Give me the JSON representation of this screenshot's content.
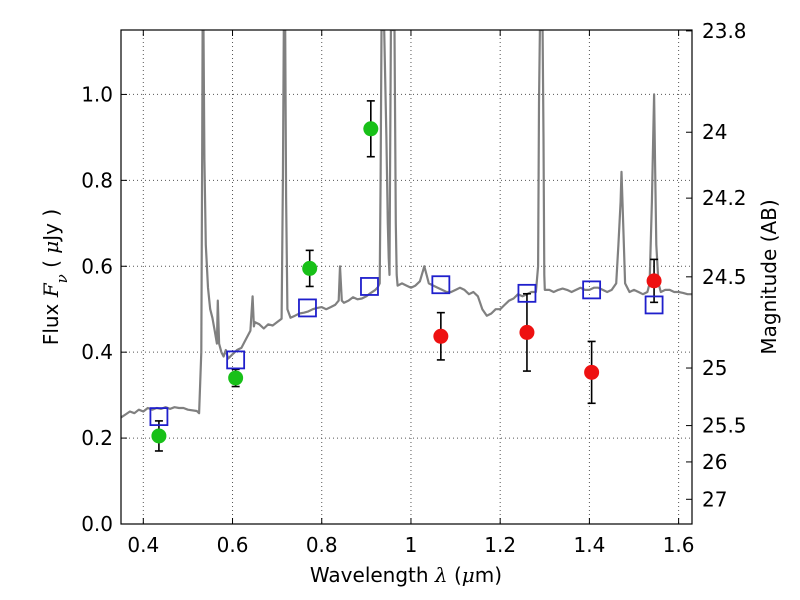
{
  "chart_data": {
    "type": "scatter",
    "xlabel_prefix": "Wavelength  ",
    "xlabel_symbol": "λ",
    "xlabel_suffix": " (",
    "xlabel_unit_mu": "μ",
    "xlabel_unit_rest": "m)",
    "ylabel_prefix": "Flux  ",
    "ylabel_symbol": "F",
    "ylabel_subscript": "ν",
    "ylabel_mid": "  ( ",
    "ylabel_unit_mu": "μ",
    "ylabel_unit_rest": "Jy )",
    "ylabel_right": "Magnitude (AB)",
    "xlim": [
      0.35,
      1.63
    ],
    "ylim": [
      0.0,
      1.15
    ],
    "grid": true,
    "x_ticks": [
      {
        "value": 0.4,
        "label": "0.4"
      },
      {
        "value": 0.6,
        "label": "0.6"
      },
      {
        "value": 0.8,
        "label": "0.8"
      },
      {
        "value": 1.0,
        "label": "1"
      },
      {
        "value": 1.2,
        "label": "1.2"
      },
      {
        "value": 1.4,
        "label": "1.4"
      },
      {
        "value": 1.6,
        "label": "1.6"
      }
    ],
    "y_ticks": [
      {
        "value": 0.0,
        "label": "0.0"
      },
      {
        "value": 0.2,
        "label": "0.2"
      },
      {
        "value": 0.4,
        "label": "0.4"
      },
      {
        "value": 0.6,
        "label": "0.6"
      },
      {
        "value": 0.8,
        "label": "0.8"
      },
      {
        "value": 1.0,
        "label": "1.0"
      }
    ],
    "right_ticks": [
      {
        "flux": 1.1479,
        "label": "23.8"
      },
      {
        "flux": 0.912,
        "label": "24"
      },
      {
        "flux": 0.7586,
        "label": "24.2"
      },
      {
        "flux": 0.5754,
        "label": "24.5"
      },
      {
        "flux": 0.3631,
        "label": "25"
      },
      {
        "flux": 0.2291,
        "label": "25.5"
      },
      {
        "flux": 0.1445,
        "label": "26"
      },
      {
        "flux": 0.0575,
        "label": "27"
      }
    ],
    "colors": {
      "spectrum": "#808080",
      "green": "#18c018",
      "red": "#ee1111",
      "model": "#1f1fcc",
      "grid": "#555555"
    },
    "series": [
      {
        "kind": "line",
        "points": [
          [
            0.35,
            0.248
          ],
          [
            0.36,
            0.255
          ],
          [
            0.37,
            0.262
          ],
          [
            0.38,
            0.258
          ],
          [
            0.39,
            0.266
          ],
          [
            0.4,
            0.262
          ],
          [
            0.41,
            0.27
          ],
          [
            0.42,
            0.266
          ],
          [
            0.43,
            0.27
          ],
          [
            0.44,
            0.268
          ],
          [
            0.45,
            0.272
          ],
          [
            0.46,
            0.268
          ],
          [
            0.47,
            0.272
          ],
          [
            0.48,
            0.27
          ],
          [
            0.49,
            0.27
          ],
          [
            0.5,
            0.266
          ],
          [
            0.52,
            0.263
          ],
          [
            0.525,
            0.258
          ],
          [
            0.53,
            0.4
          ],
          [
            0.532,
            0.88
          ],
          [
            0.533,
            1.15
          ],
          [
            0.535,
            1.15
          ],
          [
            0.537,
            0.85
          ],
          [
            0.54,
            0.65
          ],
          [
            0.545,
            0.55
          ],
          [
            0.548,
            0.52
          ],
          [
            0.55,
            0.5
          ],
          [
            0.555,
            0.48
          ],
          [
            0.56,
            0.45
          ],
          [
            0.565,
            0.42
          ],
          [
            0.567,
            0.52
          ],
          [
            0.57,
            0.42
          ],
          [
            0.575,
            0.4
          ],
          [
            0.58,
            0.39
          ],
          [
            0.585,
            0.405
          ],
          [
            0.59,
            0.385
          ],
          [
            0.6,
            0.395
          ],
          [
            0.61,
            0.405
          ],
          [
            0.62,
            0.41
          ],
          [
            0.63,
            0.43
          ],
          [
            0.64,
            0.45
          ],
          [
            0.645,
            0.53
          ],
          [
            0.648,
            0.46
          ],
          [
            0.65,
            0.47
          ],
          [
            0.66,
            0.465
          ],
          [
            0.67,
            0.455
          ],
          [
            0.68,
            0.465
          ],
          [
            0.69,
            0.462
          ],
          [
            0.7,
            0.47
          ],
          [
            0.71,
            0.478
          ],
          [
            0.713,
            0.8
          ],
          [
            0.715,
            1.15
          ],
          [
            0.718,
            1.15
          ],
          [
            0.72,
            0.76
          ],
          [
            0.723,
            0.5
          ],
          [
            0.73,
            0.48
          ],
          [
            0.74,
            0.485
          ],
          [
            0.75,
            0.49
          ],
          [
            0.76,
            0.492
          ],
          [
            0.77,
            0.495
          ],
          [
            0.78,
            0.5
          ],
          [
            0.79,
            0.503
          ],
          [
            0.8,
            0.505
          ],
          [
            0.81,
            0.5
          ],
          [
            0.82,
            0.505
          ],
          [
            0.83,
            0.51
          ],
          [
            0.838,
            0.52
          ],
          [
            0.841,
            0.6
          ],
          [
            0.845,
            0.52
          ],
          [
            0.85,
            0.515
          ],
          [
            0.86,
            0.52
          ],
          [
            0.87,
            0.528
          ],
          [
            0.88,
            0.523
          ],
          [
            0.89,
            0.525
          ],
          [
            0.9,
            0.53
          ],
          [
            0.91,
            0.538
          ],
          [
            0.92,
            0.545
          ],
          [
            0.925,
            0.55
          ],
          [
            0.93,
            0.56
          ],
          [
            0.932,
            0.8
          ],
          [
            0.934,
            1.15
          ],
          [
            0.94,
            1.15
          ],
          [
            0.945,
            0.9
          ],
          [
            0.948,
            0.7
          ],
          [
            0.95,
            0.62
          ],
          [
            0.952,
            0.58
          ],
          [
            0.953,
            0.8
          ],
          [
            0.955,
            1.15
          ],
          [
            0.963,
            1.15
          ],
          [
            0.966,
            0.7
          ],
          [
            0.968,
            0.58
          ],
          [
            0.97,
            0.555
          ],
          [
            0.98,
            0.56
          ],
          [
            0.99,
            0.555
          ],
          [
            1.0,
            0.55
          ],
          [
            1.01,
            0.555
          ],
          [
            1.02,
            0.565
          ],
          [
            1.03,
            0.6
          ],
          [
            1.035,
            0.58
          ],
          [
            1.04,
            0.56
          ],
          [
            1.05,
            0.555
          ],
          [
            1.06,
            0.55
          ],
          [
            1.07,
            0.545
          ],
          [
            1.08,
            0.54
          ],
          [
            1.09,
            0.54
          ],
          [
            1.1,
            0.545
          ],
          [
            1.11,
            0.55
          ],
          [
            1.12,
            0.545
          ],
          [
            1.13,
            0.535
          ],
          [
            1.14,
            0.54
          ],
          [
            1.15,
            0.53
          ],
          [
            1.16,
            0.5
          ],
          [
            1.17,
            0.485
          ],
          [
            1.18,
            0.49
          ],
          [
            1.19,
            0.5
          ],
          [
            1.2,
            0.5
          ],
          [
            1.21,
            0.51
          ],
          [
            1.22,
            0.52
          ],
          [
            1.23,
            0.525
          ],
          [
            1.24,
            0.535
          ],
          [
            1.25,
            0.53
          ],
          [
            1.26,
            0.535
          ],
          [
            1.27,
            0.54
          ],
          [
            1.28,
            0.54
          ],
          [
            1.285,
            0.6
          ],
          [
            1.287,
            0.98
          ],
          [
            1.289,
            1.15
          ],
          [
            1.295,
            1.15
          ],
          [
            1.297,
            0.9
          ],
          [
            1.299,
            0.58
          ],
          [
            1.3,
            0.545
          ],
          [
            1.31,
            0.545
          ],
          [
            1.32,
            0.54
          ],
          [
            1.33,
            0.545
          ],
          [
            1.34,
            0.548
          ],
          [
            1.35,
            0.545
          ],
          [
            1.36,
            0.54
          ],
          [
            1.37,
            0.545
          ],
          [
            1.38,
            0.55
          ],
          [
            1.39,
            0.545
          ],
          [
            1.4,
            0.545
          ],
          [
            1.41,
            0.55
          ],
          [
            1.42,
            0.55
          ],
          [
            1.43,
            0.545
          ],
          [
            1.44,
            0.54
          ],
          [
            1.45,
            0.545
          ],
          [
            1.46,
            0.56
          ],
          [
            1.465,
            0.65
          ],
          [
            1.47,
            0.75
          ],
          [
            1.472,
            0.82
          ],
          [
            1.475,
            0.72
          ],
          [
            1.48,
            0.56
          ],
          [
            1.49,
            0.54
          ],
          [
            1.5,
            0.545
          ],
          [
            1.51,
            0.54
          ],
          [
            1.52,
            0.535
          ],
          [
            1.53,
            0.54
          ],
          [
            1.535,
            0.56
          ],
          [
            1.54,
            0.75
          ],
          [
            1.543,
            0.9
          ],
          [
            1.545,
            1.0
          ],
          [
            1.547,
            0.85
          ],
          [
            1.55,
            0.65
          ],
          [
            1.555,
            0.56
          ],
          [
            1.56,
            0.54
          ],
          [
            1.57,
            0.545
          ],
          [
            1.58,
            0.545
          ],
          [
            1.59,
            0.54
          ],
          [
            1.6,
            0.54
          ],
          [
            1.61,
            0.538
          ],
          [
            1.62,
            0.535
          ],
          [
            1.63,
            0.535
          ]
        ]
      },
      {
        "kind": "points_with_errors",
        "color_key": "green",
        "points": [
          {
            "x": 0.435,
            "y": 0.205,
            "err": 0.035
          },
          {
            "x": 0.607,
            "y": 0.34,
            "err": 0.02
          },
          {
            "x": 0.773,
            "y": 0.595,
            "err": 0.042
          },
          {
            "x": 0.91,
            "y": 0.92,
            "err": 0.065
          }
        ]
      },
      {
        "kind": "points_with_errors",
        "color_key": "red",
        "points": [
          {
            "x": 1.067,
            "y": 0.437,
            "err": 0.055
          },
          {
            "x": 1.26,
            "y": 0.446,
            "err": 0.09
          },
          {
            "x": 1.405,
            "y": 0.353,
            "err": 0.072
          },
          {
            "x": 1.545,
            "y": 0.566,
            "err": 0.05
          }
        ]
      },
      {
        "kind": "open_squares",
        "color_key": "model",
        "points": [
          {
            "x": 0.435,
            "y": 0.25
          },
          {
            "x": 0.607,
            "y": 0.382
          },
          {
            "x": 0.768,
            "y": 0.503
          },
          {
            "x": 0.907,
            "y": 0.553
          },
          {
            "x": 1.067,
            "y": 0.557
          },
          {
            "x": 1.26,
            "y": 0.537
          },
          {
            "x": 1.405,
            "y": 0.545
          },
          {
            "x": 1.545,
            "y": 0.51
          }
        ]
      }
    ]
  }
}
